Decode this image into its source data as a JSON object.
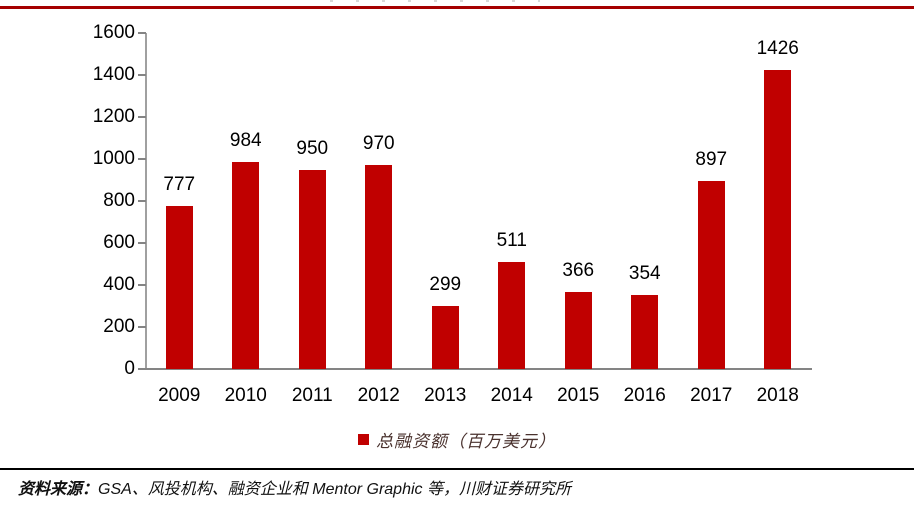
{
  "page": {
    "top_rule_color": "#a50000"
  },
  "chart_data": {
    "type": "bar",
    "title": "",
    "categories": [
      "2009",
      "2010",
      "2011",
      "2012",
      "2013",
      "2014",
      "2015",
      "2016",
      "2017",
      "2018"
    ],
    "values": [
      777,
      984,
      950,
      970,
      299,
      511,
      366,
      354,
      897,
      1426
    ],
    "bar_color": "#c00000",
    "legend": "总融资额（百万美元）",
    "legend_position": "bottom-center",
    "xlabel": "",
    "ylabel": "",
    "ylim": [
      0,
      1600
    ],
    "yticks": [
      0,
      200,
      400,
      600,
      800,
      1000,
      1200,
      1400,
      1600
    ],
    "grid": false,
    "axis_color": "#848484",
    "value_labels_shown": true
  },
  "footer": {
    "source_label": "资料来源：",
    "source_text": "GSA、风投机构、融资企业和 Mentor Graphic 等，川财证券研究所"
  }
}
